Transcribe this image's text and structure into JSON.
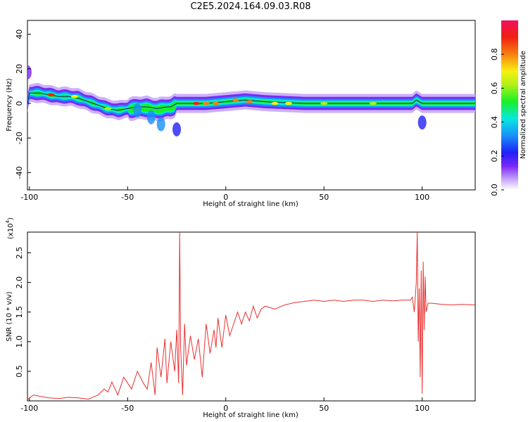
{
  "title": "C2E5.2024.164.09.03.R08",
  "chart_data": [
    {
      "type": "heatmap",
      "xlabel": "Height of straight line (km)",
      "ylabel": "Frequency (Hz)",
      "xlim": [
        -101,
        127
      ],
      "ylim": [
        -50,
        48
      ],
      "x_ticks": [
        -100,
        -50,
        0,
        50,
        100
      ],
      "y_ticks": [
        -40,
        -20,
        0,
        20,
        40
      ],
      "colorbar": {
        "label": "Normalized spectral amplitude",
        "range": [
          0,
          1
        ],
        "ticks": [
          0.0,
          0.2,
          0.4,
          0.6,
          0.8
        ],
        "colors": [
          "#ffffff",
          "#c8a8f8",
          "#7c28f8",
          "#2020f8",
          "#1890f8",
          "#08e8e0",
          "#18f028",
          "#b0f018",
          "#f8f010",
          "#f88010",
          "#f02010",
          "#f01060"
        ]
      },
      "ridge": [
        {
          "x": -100,
          "y": 6
        },
        {
          "x": -95,
          "y": 6
        },
        {
          "x": -90,
          "y": 5
        },
        {
          "x": -85,
          "y": 4
        },
        {
          "x": -80,
          "y": 4
        },
        {
          "x": -75,
          "y": 3
        },
        {
          "x": -70,
          "y": 1
        },
        {
          "x": -65,
          "y": -1
        },
        {
          "x": -60,
          "y": -3
        },
        {
          "x": -55,
          "y": -4
        },
        {
          "x": -50,
          "y": -3
        },
        {
          "x": -45,
          "y": -2
        },
        {
          "x": -40,
          "y": -2
        },
        {
          "x": -35,
          "y": -3
        },
        {
          "x": -30,
          "y": -2
        },
        {
          "x": -28,
          "y": -2
        },
        {
          "x": -25,
          "y": 0
        },
        {
          "x": -20,
          "y": 0
        },
        {
          "x": -10,
          "y": 0
        },
        {
          "x": 0,
          "y": 1
        },
        {
          "x": 10,
          "y": 2
        },
        {
          "x": 20,
          "y": 1
        },
        {
          "x": 40,
          "y": 0
        },
        {
          "x": 60,
          "y": 0
        },
        {
          "x": 80,
          "y": 0
        },
        {
          "x": 95,
          "y": 0
        },
        {
          "x": 97,
          "y": 2
        },
        {
          "x": 100,
          "y": 0
        },
        {
          "x": 110,
          "y": 0
        },
        {
          "x": 127,
          "y": 0
        }
      ],
      "hotspots": [
        {
          "x": -89,
          "y": 5,
          "amplitude": 0.9
        },
        {
          "x": -77,
          "y": 4,
          "amplitude": 0.7
        },
        {
          "x": -60,
          "y": -3,
          "amplitude": 0.6
        },
        {
          "x": -15,
          "y": 0,
          "amplitude": 0.9
        },
        {
          "x": -10,
          "y": 0,
          "amplitude": 0.85
        },
        {
          "x": -5,
          "y": 0,
          "amplitude": 0.8
        },
        {
          "x": 5,
          "y": 2,
          "amplitude": 0.85
        },
        {
          "x": 12,
          "y": 1,
          "amplitude": 0.85
        },
        {
          "x": 25,
          "y": 0,
          "amplitude": 0.75
        },
        {
          "x": 32,
          "y": 0,
          "amplitude": 0.75
        },
        {
          "x": 50,
          "y": 0,
          "amplitude": 0.6
        },
        {
          "x": 75,
          "y": 0,
          "amplitude": 0.6
        }
      ],
      "blobs": [
        {
          "x": -45,
          "y": -4,
          "amplitude": 0.4
        },
        {
          "x": -38,
          "y": -8,
          "amplitude": 0.35
        },
        {
          "x": -33,
          "y": -12,
          "amplitude": 0.35
        },
        {
          "x": -25,
          "y": -15,
          "amplitude": 0.3
        },
        {
          "x": 100,
          "y": -11,
          "amplitude": 0.25
        },
        {
          "x": -101,
          "y": 18,
          "amplitude": 0.15
        }
      ]
    },
    {
      "type": "line",
      "xlabel": "Height of straight line (km)",
      "ylabel": "SNR (10 * v/v)",
      "y_multiplier": "(x10",
      "y_multiplier_exp": "4",
      "y_multiplier_close": ")",
      "xlim": [
        -101,
        127
      ],
      "ylim": [
        0,
        2.85
      ],
      "x_ticks": [
        -100,
        -50,
        0,
        50,
        100
      ],
      "y_ticks": [
        0.5,
        1.0,
        1.5,
        2.0,
        2.5
      ],
      "y_tick_labels": [
        "0.5",
        "1.0",
        "1.5",
        "2.0",
        "2.5"
      ],
      "series": [
        {
          "color": "#e83030",
          "x": [
            -101,
            -98,
            -95,
            -90,
            -85,
            -80,
            -75,
            -70,
            -65,
            -62,
            -60,
            -58,
            -55,
            -52,
            -50,
            -48,
            -45,
            -42,
            -40,
            -38,
            -36,
            -35,
            -33,
            -31,
            -30,
            -28,
            -26,
            -25,
            -24,
            -23.5,
            -23,
            -22,
            -21,
            -20,
            -18,
            -16,
            -14,
            -12,
            -10,
            -8,
            -6,
            -5,
            -4,
            -2,
            0,
            2,
            4,
            6,
            8,
            10,
            12,
            14,
            16,
            18,
            20,
            25,
            30,
            35,
            40,
            45,
            50,
            55,
            60,
            65,
            70,
            75,
            80,
            85,
            90,
            94,
            95,
            96,
            97,
            97.5,
            98,
            98.5,
            99,
            99.5,
            100,
            100.5,
            101,
            101.5,
            102,
            103,
            105,
            110,
            115,
            120,
            127
          ],
          "y": [
            0.02,
            0.1,
            0.08,
            0.05,
            0.04,
            0.06,
            0.05,
            0.03,
            0.1,
            0.2,
            0.15,
            0.32,
            0.1,
            0.4,
            0.3,
            0.2,
            0.5,
            0.3,
            0.2,
            0.65,
            0.1,
            0.9,
            0.4,
            1.05,
            0.3,
            1.0,
            0.5,
            1.2,
            0.3,
            2.85,
            0.9,
            0.1,
            1.3,
            0.6,
            1.1,
            0.7,
            1.05,
            0.4,
            1.3,
            0.8,
            1.2,
            0.9,
            1.4,
            0.9,
            1.45,
            1.1,
            1.3,
            1.5,
            1.3,
            1.5,
            1.35,
            1.6,
            1.4,
            1.55,
            1.6,
            1.55,
            1.62,
            1.66,
            1.68,
            1.7,
            1.68,
            1.7,
            1.68,
            1.7,
            1.7,
            1.68,
            1.7,
            1.69,
            1.7,
            1.7,
            1.75,
            1.5,
            2.0,
            2.85,
            1.0,
            1.9,
            0.4,
            2.2,
            0.12,
            2.35,
            1.2,
            2.1,
            1.5,
            1.65,
            1.65,
            1.63,
            1.62,
            1.63,
            1.62
          ]
        }
      ]
    }
  ]
}
